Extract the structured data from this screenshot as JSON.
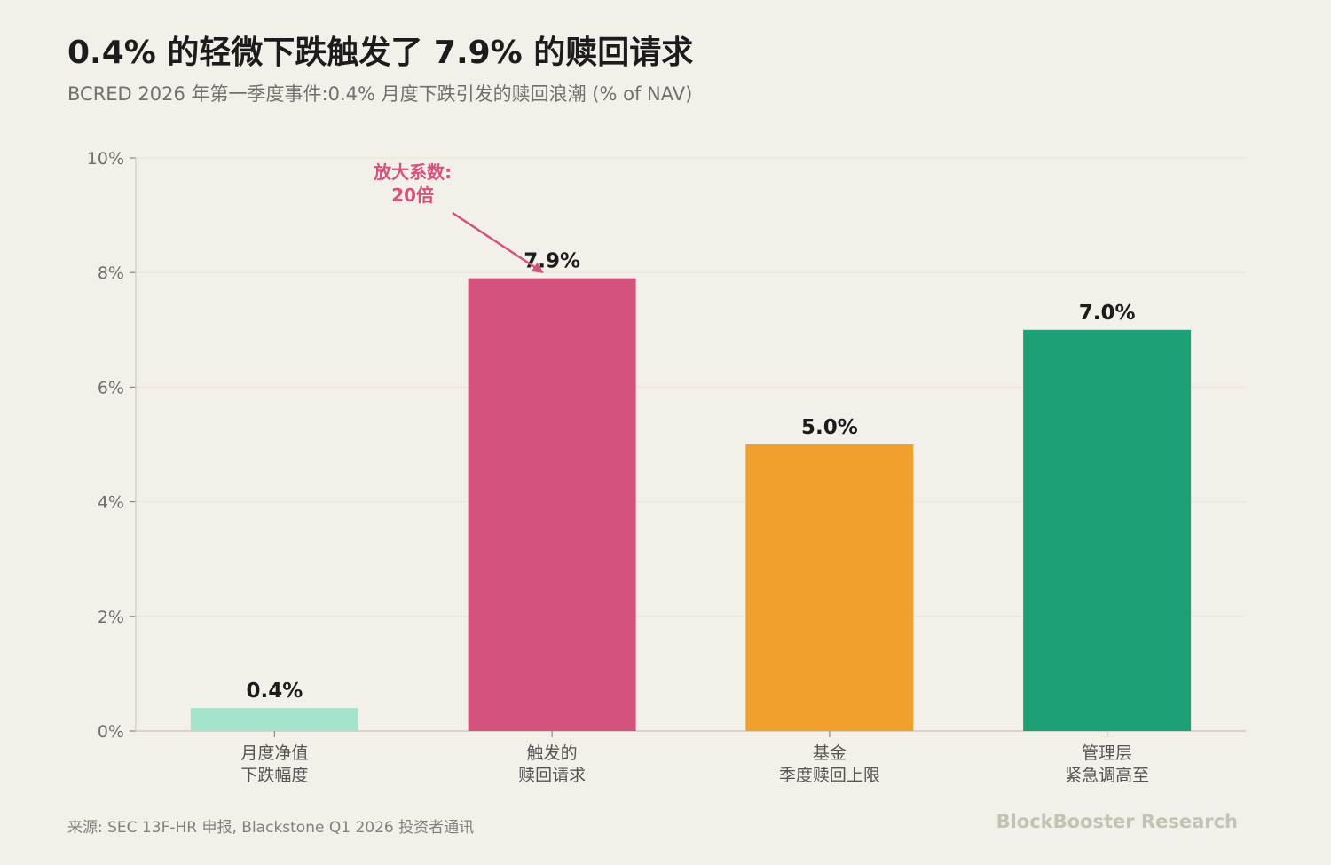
{
  "header": {
    "title": "0.4% 的轻微下跌触发了 7.9% 的赎回请求",
    "subtitle": "BCRED 2026 年第一季度事件:0.4% 月度下跌引发的赎回浪潮 (% of NAV)"
  },
  "footer": {
    "source": "来源: SEC 13F-HR 申报, Blackstone Q1 2026 投资者通讯",
    "brand": "BlockBooster Research"
  },
  "chart_data": {
    "type": "bar",
    "categories": [
      [
        "月度净值",
        "下跌幅度"
      ],
      [
        "触发的",
        "赎回请求"
      ],
      [
        "基金",
        "季度赎回上限"
      ],
      [
        "管理层",
        "紧急调高至"
      ]
    ],
    "values": [
      0.4,
      7.9,
      5.0,
      7.0
    ],
    "value_labels": [
      "0.4%",
      "7.9%",
      "5.0%",
      "7.0%"
    ],
    "colors": [
      "#a3e2cb",
      "#d4537e",
      "#f0a02c",
      "#1da075"
    ],
    "ylim": [
      0,
      10
    ],
    "yticks": [
      0,
      2,
      4,
      6,
      8,
      10
    ],
    "ytick_labels": [
      "0%",
      "2%",
      "4%",
      "6%",
      "8%",
      "10%"
    ],
    "grid": true,
    "annotation": {
      "lines": [
        "放大系数:",
        "20倍"
      ],
      "target_category_index": 1,
      "color": "#d4537e"
    }
  }
}
